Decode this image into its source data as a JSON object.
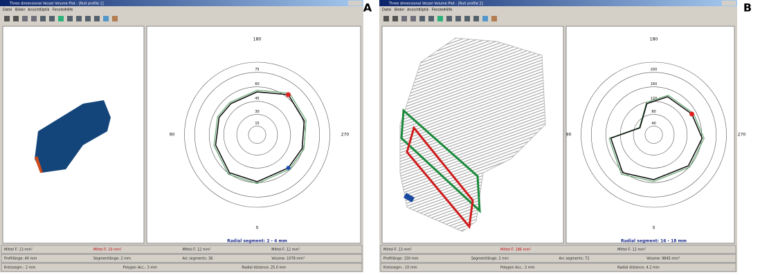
{
  "windows": [
    {
      "panel_label": "A",
      "title": "Three dimensional Vessel Volume Plot - [Ruti profile 1]",
      "menu": [
        "Datei",
        "Bilder",
        "Ansicht",
        "Optik",
        "Fenster",
        "Hilfe"
      ],
      "polar": {
        "top": "180",
        "left": "90",
        "right": "270",
        "bottom": "0",
        "rings": [
          "75",
          "60",
          "45",
          "30",
          "15"
        ]
      },
      "caption": "Radial segment: 2 - 4 mm",
      "status": [
        [
          "Mittel F: 13 mm²",
          "Mittel F: 10 mm²",
          "Mittel F: 12 mm²",
          "Mittel F: 12 mm²"
        ],
        [
          "Profillänge: 40 mm",
          "Segmentlänge: 2 mm",
          "Arc segments: 36",
          "Volume: 1078 mm³"
        ],
        [
          "Kreissegm.: 2 mm",
          "Polygon Acc.: 3 mm",
          "Radial distance: 25.0 mm"
        ]
      ]
    },
    {
      "panel_label": "B",
      "title": "Three dimensional Vessel Volume Plot - [Ruti profile 2]",
      "menu": [
        "Datei",
        "Bilder",
        "Ansicht",
        "Optik",
        "Fenster",
        "Hilfe"
      ],
      "polar": {
        "top": "180",
        "left": "90",
        "right": "270",
        "bottom": "0",
        "rings": [
          "200",
          "160",
          "120",
          "80",
          "40"
        ]
      },
      "caption": "Radial segment: 16 - 18 mm",
      "status": [
        [
          "Mittel F: 13 mm²",
          "Mittel F: 186 mm²",
          "Mittel F: 12 mm²"
        ],
        [
          "Profillänge: 150 mm",
          "Segmentlänge: 2 mm",
          "Arc segments: 72",
          "Volume: 9845 mm³"
        ],
        [
          "Kreissegm.: 10 mm",
          "Polygon Acc.: 3 mm",
          "Radial distance: 4.2 mm"
        ]
      ]
    }
  ]
}
